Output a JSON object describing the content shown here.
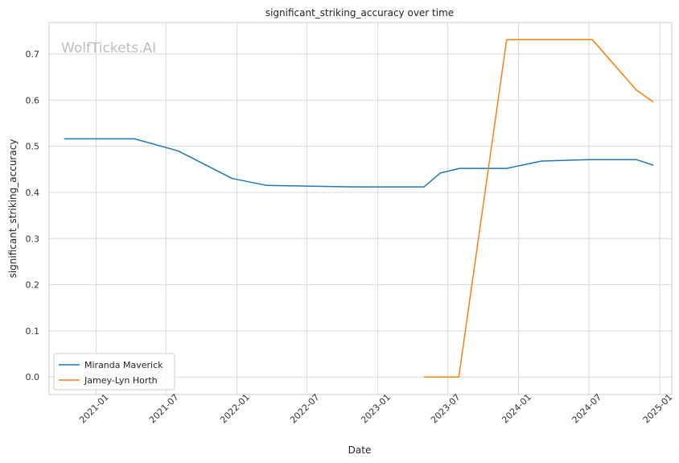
{
  "watermark": "WolfTickets.AI",
  "chart_data": {
    "type": "line",
    "title": "significant_striking_accuracy over time",
    "xlabel": "Date",
    "ylabel": "significant_striking_accuracy",
    "x_ticks": [
      "2021-01",
      "2021-07",
      "2022-01",
      "2022-07",
      "2023-01",
      "2023-07",
      "2024-01",
      "2024-07",
      "2025-01"
    ],
    "y_ticks": [
      "0.0",
      "0.1",
      "0.2",
      "0.3",
      "0.4",
      "0.5",
      "0.6",
      "0.7"
    ],
    "xlim": [
      "2020-09-01",
      "2025-02-01"
    ],
    "ylim": [
      -0.038,
      0.768
    ],
    "grid": true,
    "legend_position": "lower-left",
    "series": [
      {
        "name": "Miranda Maverick",
        "color": "#1f77b4",
        "points": [
          [
            "2020-10-10",
            0.516
          ],
          [
            "2021-04-10",
            0.516
          ],
          [
            "2021-08-01",
            0.49
          ],
          [
            "2021-12-20",
            0.43
          ],
          [
            "2022-03-20",
            0.415
          ],
          [
            "2022-11-01",
            0.412
          ],
          [
            "2023-05-01",
            0.412
          ],
          [
            "2023-06-12",
            0.442
          ],
          [
            "2023-08-01",
            0.452
          ],
          [
            "2023-12-01",
            0.452
          ],
          [
            "2024-03-01",
            0.468
          ],
          [
            "2024-07-01",
            0.471
          ],
          [
            "2024-11-01",
            0.471
          ],
          [
            "2024-12-15",
            0.459
          ]
        ]
      },
      {
        "name": "Jamey-Lyn Horth",
        "color": "#ff7f0e",
        "points": [
          [
            "2023-05-01",
            0.0
          ],
          [
            "2023-07-30",
            0.0
          ],
          [
            "2023-12-01",
            0.731
          ],
          [
            "2024-07-10",
            0.731
          ],
          [
            "2024-11-01",
            0.622
          ],
          [
            "2024-12-15",
            0.596
          ]
        ]
      }
    ]
  }
}
